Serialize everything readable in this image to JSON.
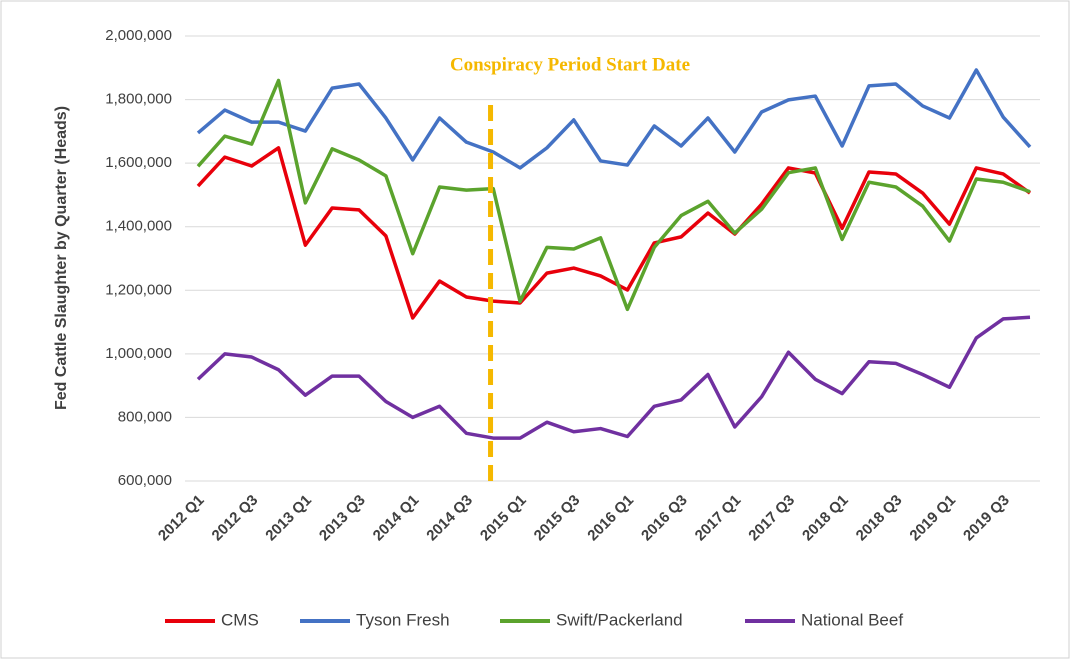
{
  "chart_data": {
    "type": "line",
    "y_label": "Fed Cattle Slaughter by Quarter (Heads)",
    "annotation": "Conspiracy Period Start Date",
    "categories": [
      "2012 Q1",
      null,
      "2012 Q3",
      null,
      "2013 Q1",
      null,
      "2013 Q3",
      null,
      "2014 Q1",
      null,
      "2014 Q3",
      null,
      "2015 Q1",
      null,
      "2015 Q3",
      null,
      "2016 Q1",
      null,
      "2016 Q3",
      null,
      "2017 Q1",
      null,
      "2017 Q3",
      null,
      "2018 Q1",
      null,
      "2018 Q3",
      null,
      "2019 Q1",
      null,
      "2019 Q3",
      null
    ],
    "series": [
      {
        "name": "CMS",
        "color": "#e8000b",
        "values": [
          1528000,
          1619000,
          1591000,
          1648000,
          1342000,
          1459000,
          1453000,
          1371000,
          1113000,
          1229000,
          1179000,
          1166000,
          1160000,
          1254000,
          1270000,
          1245000,
          1201000,
          1349000,
          1368000,
          1443000,
          1377000,
          1471000,
          1585000,
          1569000,
          1395000,
          1572000,
          1566000,
          1506000,
          1408000,
          1585000,
          1566000,
          1506000
        ]
      },
      {
        "name": "Tyson Fresh",
        "color": "#4472c4",
        "values": [
          1695000,
          1767000,
          1729000,
          1729000,
          1701000,
          1836000,
          1849000,
          1742000,
          1610000,
          1742000,
          1666000,
          1635000,
          1585000,
          1648000,
          1736000,
          1607000,
          1594000,
          1717000,
          1654000,
          1742000,
          1635000,
          1761000,
          1799000,
          1811000,
          1654000,
          1843000,
          1849000,
          1780000,
          1742000,
          1893000,
          1745000,
          1651000
        ]
      },
      {
        "name": "Swift/Packerland",
        "color": "#5ba32d",
        "values": [
          1590000,
          1685000,
          1660000,
          1860000,
          1475000,
          1645000,
          1610000,
          1560000,
          1315000,
          1525000,
          1515000,
          1520000,
          1165000,
          1335000,
          1330000,
          1365000,
          1140000,
          1335000,
          1435000,
          1480000,
          1380000,
          1455000,
          1570000,
          1585000,
          1360000,
          1540000,
          1525000,
          1465000,
          1355000,
          1550000,
          1540000,
          1510000
        ]
      },
      {
        "name": "National Beef",
        "color": "#7030a0",
        "values": [
          920000,
          1000000,
          990000,
          950000,
          870000,
          930000,
          930000,
          850000,
          800000,
          835000,
          750000,
          735000,
          735000,
          785000,
          755000,
          765000,
          740000,
          835000,
          855000,
          935000,
          770000,
          865000,
          1005000,
          920000,
          875000,
          975000,
          970000,
          935000,
          895000,
          1050000,
          1110000,
          1115000
        ]
      }
    ],
    "ylim": [
      600000,
      2000000
    ],
    "yticks": [
      {
        "value": 600000,
        "label": "600,000"
      },
      {
        "value": 800000,
        "label": "800,000"
      },
      {
        "value": 1000000,
        "label": "1,000,000"
      },
      {
        "value": 1200000,
        "label": "1,200,000"
      },
      {
        "value": 1400000,
        "label": "1,400,000"
      },
      {
        "value": 1600000,
        "label": "1,600,000"
      },
      {
        "value": 1800000,
        "label": "1,800,000"
      },
      {
        "value": 2000000,
        "label": "2,000,000"
      }
    ],
    "grid": true,
    "legend": "bottom"
  }
}
